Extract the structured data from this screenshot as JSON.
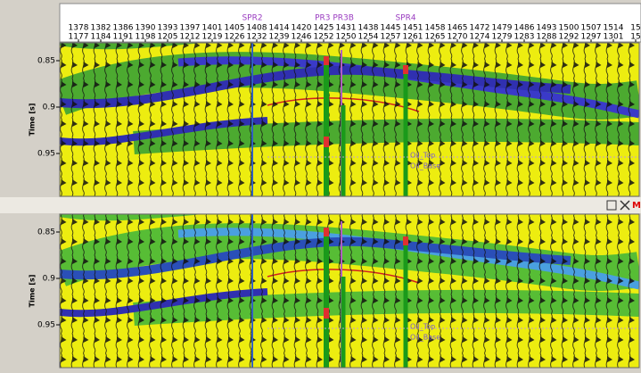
{
  "header": {
    "inline_row": [
      1378,
      1382,
      1386,
      1390,
      1393,
      1397,
      1401,
      1405,
      1408,
      1414,
      1420,
      1425,
      1431,
      1438,
      1445,
      1451,
      1458,
      1465,
      1472,
      1479,
      1486,
      1493,
      1500,
      1507,
      1514,
      15
    ],
    "crossline_row": [
      1177,
      1184,
      1191,
      1198,
      1205,
      1212,
      1219,
      1226,
      1232,
      1239,
      1246,
      1252,
      1250,
      1254,
      1257,
      1261,
      1265,
      1270,
      1274,
      1279,
      1283,
      1288,
      1292,
      1297,
      1301,
      15
    ],
    "wells": [
      "SPR2",
      "PR3 PR3B",
      "SPR4"
    ]
  },
  "panels": [
    {
      "axis_title": "Time [s]",
      "time_labels": [
        "0.85",
        "0.9",
        "0.95"
      ],
      "annotations": [
        "Oil_Top",
        "Oil_Base"
      ]
    },
    {
      "axis_title": "Time [s]",
      "time_labels": [
        "0.85",
        "0.9",
        "0.95"
      ],
      "annotations": [
        "Oil_Top",
        "Oil_Base"
      ]
    }
  ],
  "toolbar": {
    "close_label": "M"
  }
}
